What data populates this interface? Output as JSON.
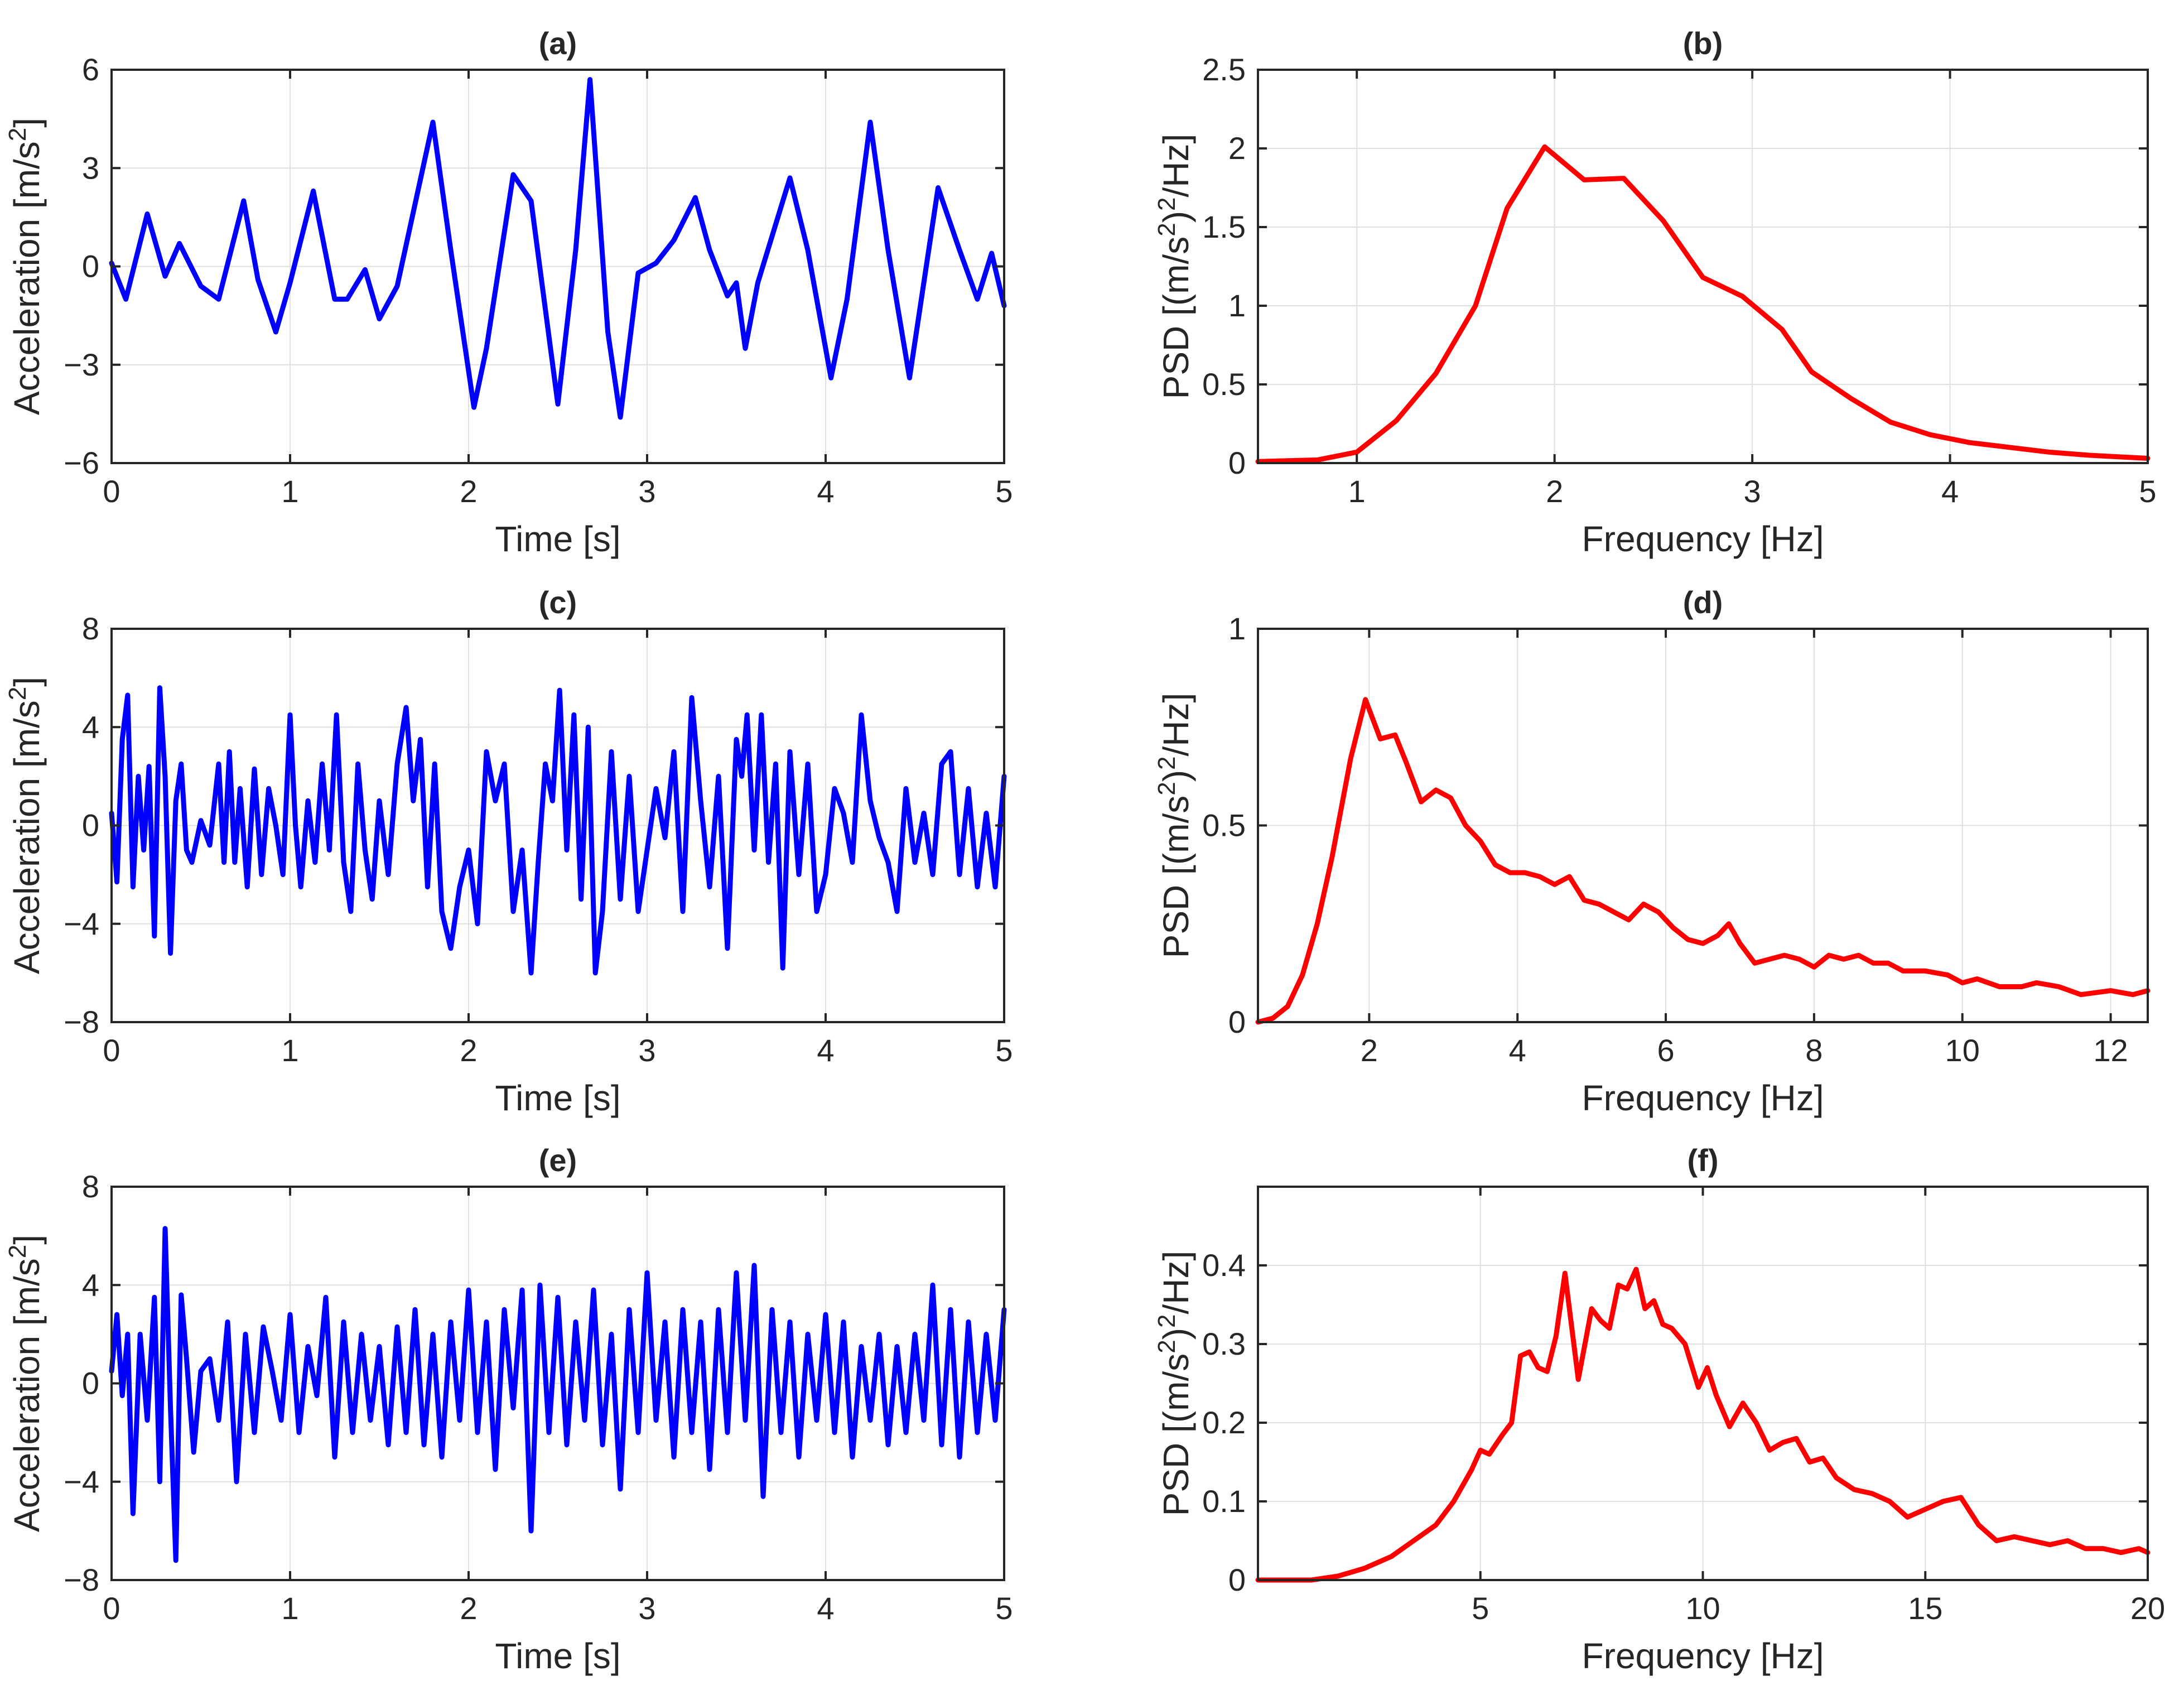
{
  "chart_data": [
    {
      "id": "a",
      "type": "line",
      "title": "(a)",
      "xlabel": "Time [s]",
      "ylabel": "Acceleration [m/s^2]",
      "xlim": [
        0,
        5
      ],
      "ylim": [
        -6,
        6
      ],
      "xticks": [
        0,
        1,
        2,
        3,
        4,
        5
      ],
      "yticks": [
        -6,
        -3,
        0,
        3,
        6
      ],
      "grid": true,
      "series": [
        {
          "name": "acceleration",
          "color": "#0000ff",
          "x": [
            0,
            0.08,
            0.2,
            0.3,
            0.38,
            0.5,
            0.6,
            0.74,
            0.82,
            0.92,
            1.0,
            1.13,
            1.25,
            1.32,
            1.42,
            1.5,
            1.6,
            1.8,
            1.9,
            2.03,
            2.1,
            2.25,
            2.35,
            2.5,
            2.6,
            2.68,
            2.78,
            2.85,
            2.95,
            3.05,
            3.15,
            3.27,
            3.35,
            3.45,
            3.5,
            3.55,
            3.62,
            3.8,
            3.9,
            4.03,
            4.12,
            4.25,
            4.35,
            4.47,
            4.55,
            4.63,
            4.75,
            4.85,
            4.93,
            5.0
          ],
          "y": [
            0.1,
            -1.0,
            1.6,
            -0.3,
            0.7,
            -0.6,
            -1.0,
            2.0,
            -0.4,
            -2.0,
            -0.5,
            2.3,
            -1.0,
            -1.0,
            -0.1,
            -1.6,
            -0.6,
            4.4,
            0.5,
            -4.3,
            -2.5,
            2.8,
            2.0,
            -4.2,
            0.5,
            5.7,
            -2.0,
            -4.6,
            -0.2,
            0.1,
            0.8,
            2.1,
            0.5,
            -0.9,
            -0.5,
            -2.5,
            -0.5,
            2.7,
            0.5,
            -3.4,
            -1.0,
            4.4,
            0.5,
            -3.4,
            -0.5,
            2.4,
            0.5,
            -1.0,
            0.4,
            -1.2
          ]
        }
      ]
    },
    {
      "id": "b",
      "type": "line",
      "title": "(b)",
      "xlabel": "Frequency [Hz]",
      "ylabel": "PSD [(m/s^2)^2/Hz]",
      "xlim": [
        0.5,
        5
      ],
      "ylim": [
        0,
        2.5
      ],
      "xticks": [
        1,
        2,
        3,
        4,
        5
      ],
      "yticks": [
        0,
        0.5,
        1,
        1.5,
        2,
        2.5
      ],
      "grid": true,
      "series": [
        {
          "name": "psd",
          "color": "#ff0000",
          "x": [
            0.5,
            0.8,
            1.0,
            1.2,
            1.4,
            1.6,
            1.76,
            1.95,
            2.15,
            2.35,
            2.55,
            2.75,
            2.95,
            3.15,
            3.3,
            3.5,
            3.7,
            3.9,
            4.1,
            4.3,
            4.5,
            4.7,
            5.0
          ],
          "y": [
            0.01,
            0.02,
            0.07,
            0.27,
            0.57,
            1.0,
            1.62,
            2.01,
            1.8,
            1.81,
            1.54,
            1.18,
            1.06,
            0.85,
            0.58,
            0.41,
            0.26,
            0.18,
            0.13,
            0.1,
            0.07,
            0.05,
            0.03
          ]
        }
      ]
    },
    {
      "id": "c",
      "type": "line",
      "title": "(c)",
      "xlabel": "Time [s]",
      "ylabel": "Acceleration [m/s^2]",
      "xlim": [
        0,
        5
      ],
      "ylim": [
        -8,
        8
      ],
      "xticks": [
        0,
        1,
        2,
        3,
        4,
        5
      ],
      "yticks": [
        -8,
        -4,
        0,
        4,
        8
      ],
      "grid": true,
      "series": [
        {
          "name": "acceleration",
          "color": "#0000ff",
          "x": [
            0,
            0.03,
            0.06,
            0.09,
            0.12,
            0.15,
            0.18,
            0.21,
            0.24,
            0.27,
            0.3,
            0.33,
            0.36,
            0.39,
            0.42,
            0.45,
            0.5,
            0.55,
            0.6,
            0.63,
            0.66,
            0.69,
            0.72,
            0.76,
            0.8,
            0.84,
            0.88,
            0.92,
            0.96,
            1.0,
            1.03,
            1.06,
            1.1,
            1.14,
            1.18,
            1.22,
            1.26,
            1.3,
            1.34,
            1.38,
            1.42,
            1.46,
            1.5,
            1.55,
            1.6,
            1.65,
            1.69,
            1.73,
            1.77,
            1.81,
            1.85,
            1.9,
            1.95,
            2.0,
            2.05,
            2.1,
            2.15,
            2.2,
            2.25,
            2.3,
            2.35,
            2.39,
            2.43,
            2.47,
            2.51,
            2.55,
            2.59,
            2.63,
            2.67,
            2.71,
            2.75,
            2.8,
            2.85,
            2.9,
            2.95,
            3.0,
            3.05,
            3.1,
            3.15,
            3.2,
            3.25,
            3.3,
            3.35,
            3.4,
            3.45,
            3.5,
            3.53,
            3.56,
            3.6,
            3.64,
            3.68,
            3.72,
            3.76,
            3.8,
            3.85,
            3.9,
            3.95,
            4.0,
            4.05,
            4.1,
            4.15,
            4.2,
            4.25,
            4.3,
            4.35,
            4.4,
            4.45,
            4.5,
            4.55,
            4.6,
            4.65,
            4.7,
            4.75,
            4.8,
            4.85,
            4.9,
            4.95,
            5.0
          ],
          "y": [
            0.5,
            -2.3,
            3.5,
            5.3,
            -2.5,
            2.0,
            -1.0,
            2.4,
            -4.5,
            5.6,
            2.0,
            -5.2,
            1.0,
            2.5,
            -1.0,
            -1.5,
            0.2,
            -0.8,
            2.5,
            -1.5,
            3.0,
            -1.5,
            1.5,
            -2.5,
            2.3,
            -2.0,
            1.5,
            0.0,
            -2.0,
            4.5,
            0.0,
            -2.5,
            1.0,
            -1.5,
            2.5,
            -1.0,
            4.5,
            -1.5,
            -3.5,
            2.5,
            -1.0,
            -3.0,
            1.0,
            -2.0,
            2.5,
            4.8,
            1.0,
            3.5,
            -2.5,
            2.5,
            -3.5,
            -5.0,
            -2.5,
            -1.0,
            -4.0,
            3.0,
            1.0,
            2.5,
            -3.5,
            -1.0,
            -6.0,
            -1.5,
            2.5,
            1.0,
            5.5,
            -1.0,
            4.5,
            -3.0,
            4.0,
            -6.0,
            -3.5,
            3.0,
            -3.0,
            2.0,
            -3.5,
            -1.0,
            1.5,
            -0.5,
            3.0,
            -3.5,
            5.2,
            1.0,
            -2.5,
            2.0,
            -5.0,
            3.5,
            2.0,
            4.5,
            -1.0,
            4.5,
            -1.5,
            2.5,
            -5.8,
            3.0,
            -2.0,
            2.5,
            -3.5,
            -2.0,
            1.5,
            0.5,
            -1.5,
            4.5,
            1.0,
            -0.5,
            -1.5,
            -3.5,
            1.5,
            -1.5,
            0.5,
            -2.0,
            2.5,
            3.0,
            -2.0,
            1.5,
            -2.5,
            0.5,
            -2.5,
            2.0
          ]
        }
      ]
    },
    {
      "id": "d",
      "type": "line",
      "title": "(d)",
      "xlabel": "Frequency [Hz]",
      "ylabel": "PSD [(m/s^2)^2/Hz]",
      "xlim": [
        0.5,
        12.5
      ],
      "ylim": [
        0,
        1
      ],
      "xticks": [
        2,
        4,
        6,
        8,
        10,
        12
      ],
      "yticks": [
        0,
        0.5,
        1
      ],
      "grid": true,
      "series": [
        {
          "name": "psd",
          "color": "#ff0000",
          "x": [
            0.5,
            0.7,
            0.9,
            1.1,
            1.3,
            1.5,
            1.75,
            1.95,
            2.15,
            2.35,
            2.5,
            2.7,
            2.9,
            3.1,
            3.3,
            3.5,
            3.7,
            3.9,
            4.1,
            4.3,
            4.5,
            4.7,
            4.9,
            5.1,
            5.3,
            5.5,
            5.7,
            5.9,
            6.1,
            6.3,
            6.5,
            6.7,
            6.85,
            7.0,
            7.2,
            7.4,
            7.6,
            7.8,
            8.0,
            8.2,
            8.4,
            8.6,
            8.8,
            9.0,
            9.2,
            9.5,
            9.8,
            10.0,
            10.2,
            10.5,
            10.8,
            11.0,
            11.3,
            11.6,
            12.0,
            12.3,
            12.5
          ],
          "y": [
            0.0,
            0.01,
            0.04,
            0.12,
            0.25,
            0.42,
            0.67,
            0.82,
            0.72,
            0.73,
            0.66,
            0.56,
            0.59,
            0.57,
            0.5,
            0.46,
            0.4,
            0.38,
            0.38,
            0.37,
            0.35,
            0.37,
            0.31,
            0.3,
            0.28,
            0.26,
            0.3,
            0.28,
            0.24,
            0.21,
            0.2,
            0.22,
            0.25,
            0.2,
            0.15,
            0.16,
            0.17,
            0.16,
            0.14,
            0.17,
            0.16,
            0.17,
            0.15,
            0.15,
            0.13,
            0.13,
            0.12,
            0.1,
            0.11,
            0.09,
            0.09,
            0.1,
            0.09,
            0.07,
            0.08,
            0.07,
            0.08
          ]
        }
      ]
    },
    {
      "id": "e",
      "type": "line",
      "title": "(e)",
      "xlabel": "Time [s]",
      "ylabel": "Acceleration [m/s^2]",
      "xlim": [
        0,
        5
      ],
      "ylim": [
        -8,
        8
      ],
      "xticks": [
        0,
        1,
        2,
        3,
        4,
        5
      ],
      "yticks": [
        -8,
        -4,
        0,
        4,
        8
      ],
      "grid": true,
      "series": [
        {
          "name": "acceleration",
          "color": "#0000ff",
          "x": [
            0,
            0.03,
            0.06,
            0.09,
            0.12,
            0.16,
            0.2,
            0.24,
            0.27,
            0.3,
            0.33,
            0.36,
            0.39,
            0.42,
            0.46,
            0.5,
            0.55,
            0.6,
            0.65,
            0.7,
            0.75,
            0.8,
            0.85,
            0.9,
            0.95,
            1.0,
            1.05,
            1.1,
            1.15,
            1.2,
            1.25,
            1.3,
            1.35,
            1.4,
            1.45,
            1.5,
            1.55,
            1.6,
            1.65,
            1.7,
            1.75,
            1.8,
            1.85,
            1.9,
            1.95,
            2.0,
            2.05,
            2.1,
            2.15,
            2.2,
            2.25,
            2.3,
            2.35,
            2.4,
            2.45,
            2.5,
            2.55,
            2.6,
            2.65,
            2.7,
            2.75,
            2.8,
            2.85,
            2.9,
            2.95,
            3.0,
            3.05,
            3.1,
            3.15,
            3.2,
            3.25,
            3.3,
            3.35,
            3.4,
            3.45,
            3.5,
            3.55,
            3.6,
            3.65,
            3.7,
            3.75,
            3.8,
            3.85,
            3.9,
            3.95,
            4.0,
            4.05,
            4.1,
            4.15,
            4.2,
            4.25,
            4.3,
            4.35,
            4.4,
            4.45,
            4.5,
            4.55,
            4.6,
            4.65,
            4.7,
            4.75,
            4.8,
            4.85,
            4.9,
            4.95,
            5.0
          ],
          "y": [
            0.5,
            2.8,
            -0.5,
            2.0,
            -5.3,
            2.0,
            -1.5,
            3.5,
            -4.0,
            6.3,
            -1.0,
            -7.2,
            3.6,
            1.0,
            -2.8,
            0.5,
            1.0,
            -1.5,
            2.5,
            -4.0,
            2.0,
            -2.0,
            2.3,
            0.5,
            -1.5,
            2.8,
            -2.0,
            1.5,
            -0.5,
            3.5,
            -3.0,
            2.5,
            -2.0,
            2.0,
            -1.5,
            1.5,
            -2.5,
            2.3,
            -2.0,
            3.0,
            -2.5,
            2.0,
            -3.0,
            2.5,
            -1.5,
            3.8,
            -2.0,
            2.5,
            -3.5,
            3.0,
            -1.0,
            3.8,
            -6.0,
            4.0,
            -2.0,
            3.5,
            -2.5,
            2.5,
            -1.5,
            3.8,
            -2.5,
            2.0,
            -4.3,
            3.0,
            -2.0,
            4.5,
            -1.5,
            2.5,
            -3.0,
            3.0,
            -2.0,
            2.5,
            -3.5,
            3.0,
            -2.0,
            4.5,
            -1.5,
            4.8,
            -4.6,
            3.0,
            -2.0,
            2.5,
            -3.0,
            2.0,
            -1.5,
            2.8,
            -2.0,
            2.5,
            -3.0,
            1.5,
            -1.5,
            2.0,
            -2.5,
            1.5,
            -2.0,
            2.0,
            -1.5,
            4.0,
            -2.5,
            3.0,
            -3.0,
            2.5,
            -2.0,
            2.0,
            -1.5,
            3.0
          ]
        }
      ]
    },
    {
      "id": "f",
      "type": "line",
      "title": "(f)",
      "xlabel": "Frequency [Hz]",
      "ylabel": "PSD [(m/s^2)^2/Hz]",
      "xlim": [
        0,
        20
      ],
      "ylim": [
        0,
        0.5
      ],
      "xticks": [
        5,
        10,
        15,
        20
      ],
      "yticks": [
        0,
        0.1,
        0.2,
        0.3,
        0.4
      ],
      "grid": true,
      "series": [
        {
          "name": "psd",
          "color": "#ff0000",
          "x": [
            0,
            0.6,
            1.2,
            1.8,
            2.4,
            3.0,
            3.5,
            4.0,
            4.4,
            4.8,
            5.0,
            5.2,
            5.5,
            5.7,
            5.9,
            6.1,
            6.3,
            6.5,
            6.7,
            6.9,
            7.2,
            7.5,
            7.7,
            7.9,
            8.1,
            8.3,
            8.5,
            8.7,
            8.9,
            9.1,
            9.3,
            9.6,
            9.9,
            10.1,
            10.3,
            10.6,
            10.9,
            11.2,
            11.5,
            11.8,
            12.1,
            12.4,
            12.7,
            13.0,
            13.4,
            13.8,
            14.2,
            14.6,
            15.0,
            15.4,
            15.8,
            16.2,
            16.6,
            17.0,
            17.4,
            17.8,
            18.2,
            18.6,
            19.0,
            19.4,
            19.8,
            20.0
          ],
          "y": [
            0.0,
            0.0,
            0.0,
            0.005,
            0.015,
            0.03,
            0.05,
            0.07,
            0.1,
            0.14,
            0.165,
            0.16,
            0.185,
            0.2,
            0.285,
            0.29,
            0.27,
            0.265,
            0.31,
            0.39,
            0.255,
            0.345,
            0.33,
            0.32,
            0.375,
            0.37,
            0.395,
            0.345,
            0.355,
            0.325,
            0.32,
            0.3,
            0.245,
            0.27,
            0.235,
            0.195,
            0.225,
            0.2,
            0.165,
            0.175,
            0.18,
            0.15,
            0.155,
            0.13,
            0.115,
            0.11,
            0.1,
            0.08,
            0.09,
            0.1,
            0.105,
            0.07,
            0.05,
            0.055,
            0.05,
            0.045,
            0.05,
            0.04,
            0.04,
            0.035,
            0.04,
            0.035
          ]
        }
      ]
    }
  ]
}
